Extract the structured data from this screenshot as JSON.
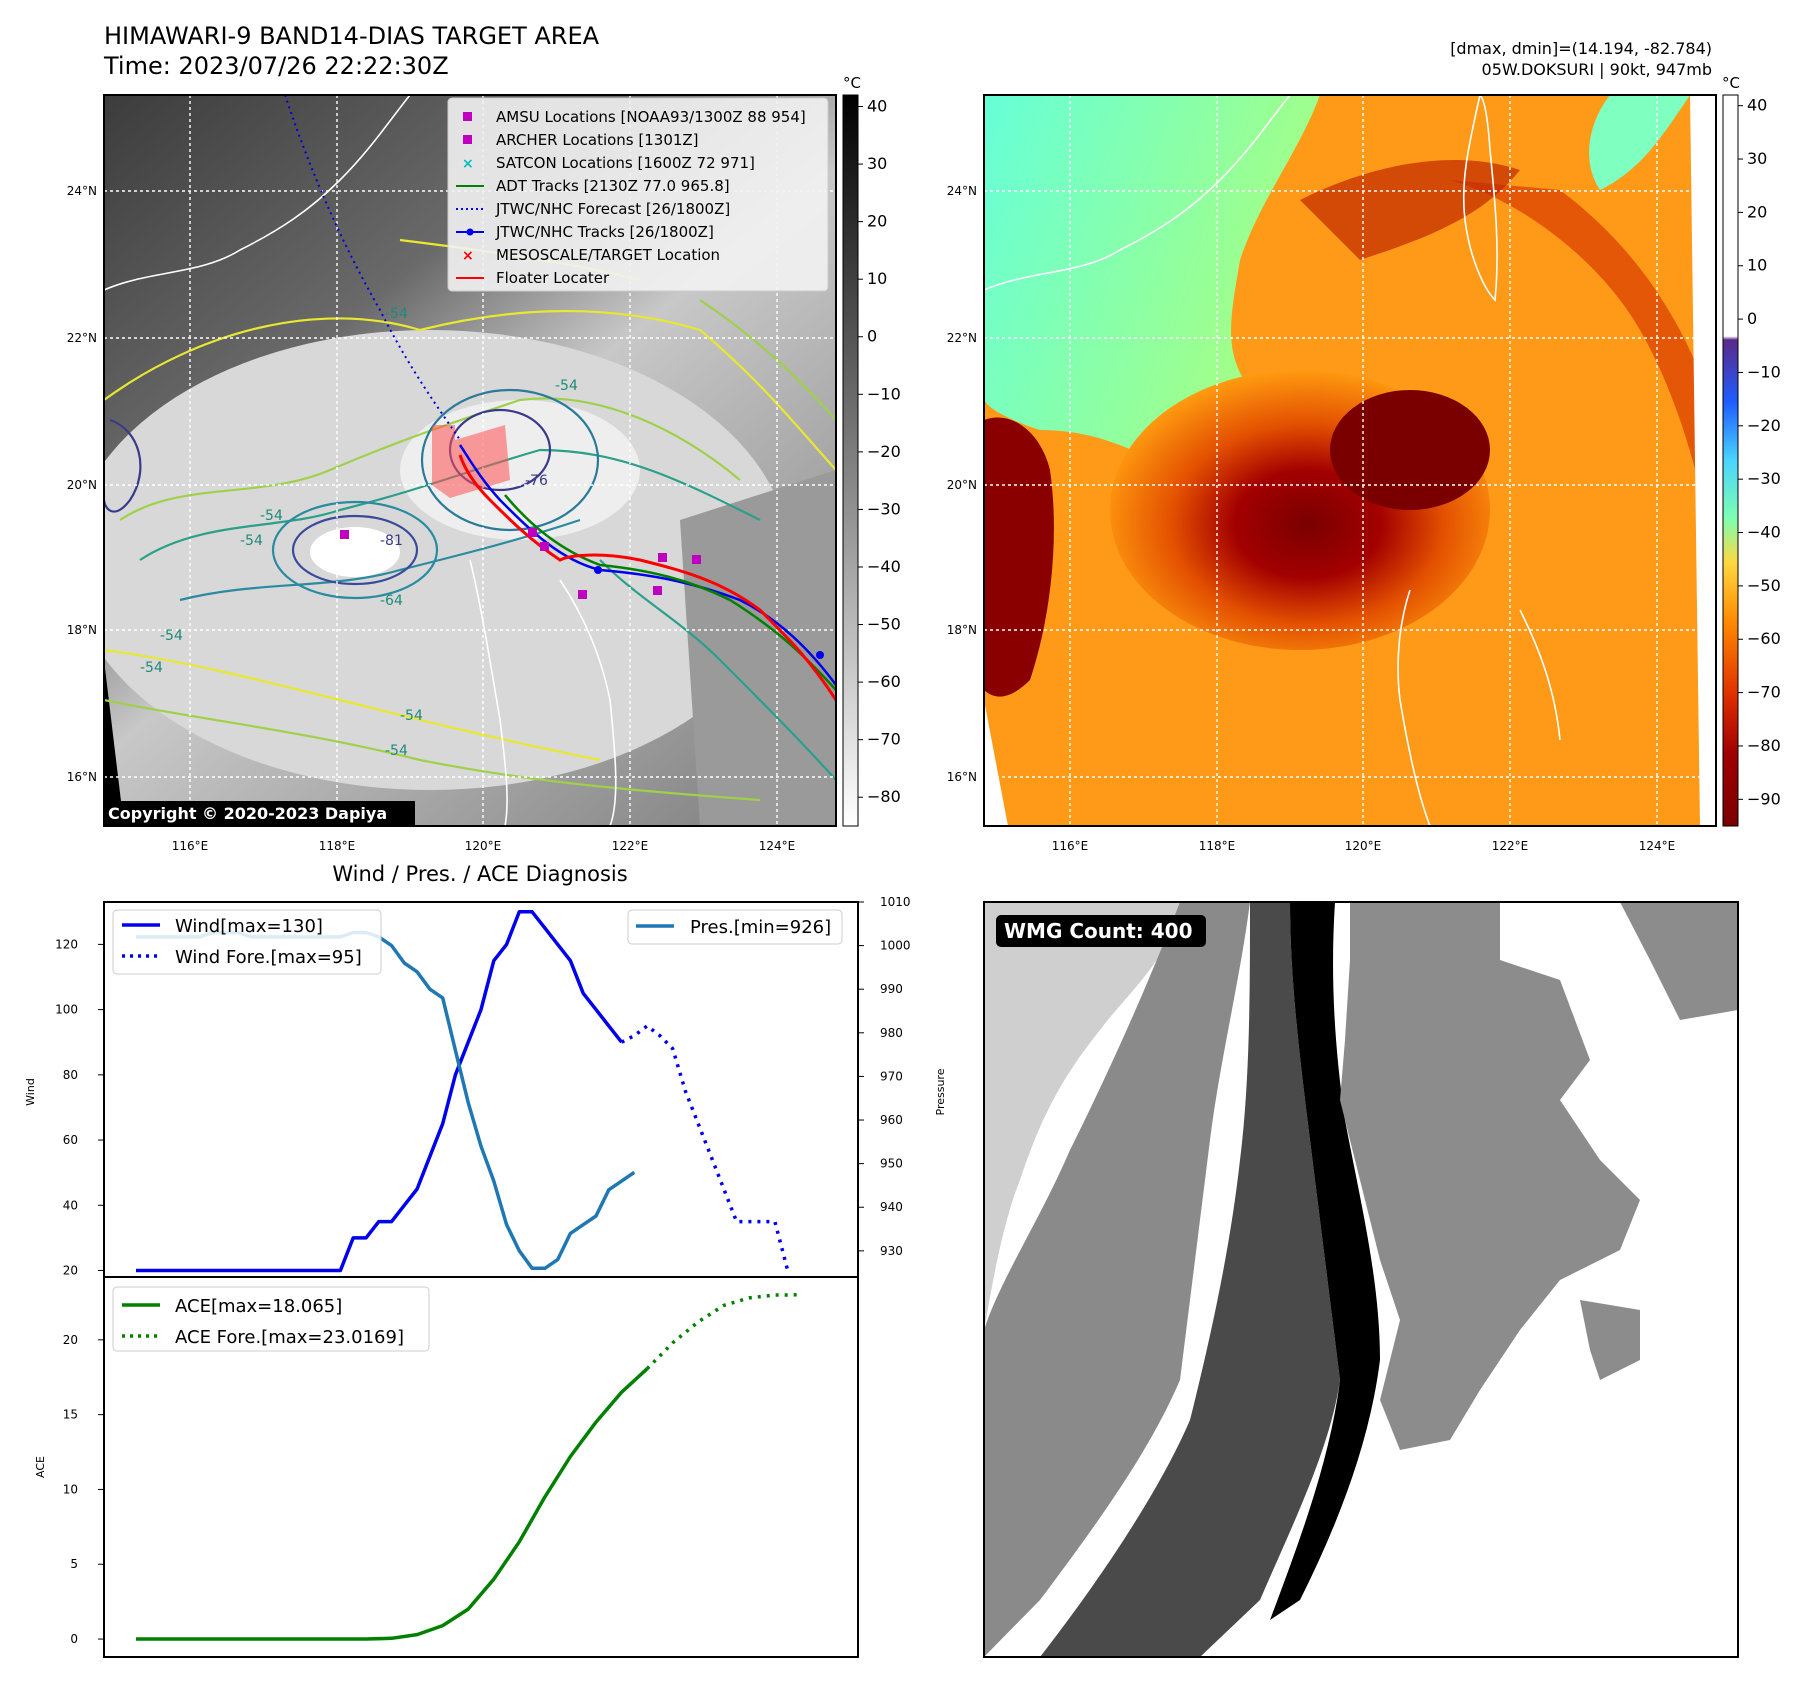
{
  "header": {
    "title": "HIMAWARI-9 BAND14-DIAS TARGET AREA",
    "time": "Time: 2023/07/26 22:22:30Z",
    "dmax_dmin": "[dmax, dmin]=(14.194, -82.784)",
    "storm": "05W.DOKSURI | 90kt, 947mb"
  },
  "colors": {
    "wind": "#0000ee",
    "pres": "#1f77b4",
    "ace": "#008000",
    "floater": "#ff0000",
    "amsu": "#bf00bf",
    "satcon": "#00bfbf",
    "adt": "#008000"
  },
  "map_left": {
    "unit": "°C",
    "lat_ticks": [
      "24°N",
      "22°N",
      "20°N",
      "18°N",
      "16°N"
    ],
    "lon_ticks": [
      "116°E",
      "118°E",
      "120°E",
      "122°E",
      "124°E"
    ],
    "colorbar_ticks": [
      "40",
      "30",
      "20",
      "10",
      "0",
      "−10",
      "−20",
      "−30",
      "−40",
      "−50",
      "−60",
      "−70",
      "−80"
    ],
    "contour_labels": [
      "-54",
      "-54",
      "-54",
      "-54",
      "-54",
      "-54",
      "-54",
      "-76",
      "-81",
      "-64",
      "-54"
    ],
    "copyright": "Copyright © 2020-2023 Dapiya",
    "legend": [
      {
        "label": "AMSU Locations [NOAA93/1300Z 88 954]",
        "icon": "square-magenta"
      },
      {
        "label": "ARCHER Locations [1301Z]",
        "icon": "square-magenta"
      },
      {
        "label": "SATCON Locations [1600Z 72 971]",
        "icon": "x-cyan"
      },
      {
        "label": "ADT Tracks [2130Z 77.0 965.8]",
        "icon": "line-green"
      },
      {
        "label": "JTWC/NHC Forecast [26/1800Z]",
        "icon": "dotted-blue"
      },
      {
        "label": "JTWC/NHC Tracks [26/1800Z]",
        "icon": "line-dot-blue"
      },
      {
        "label": "MESOSCALE/TARGET Location",
        "icon": "x-red"
      },
      {
        "label": "Floater Locater",
        "icon": "line-red"
      }
    ]
  },
  "map_right": {
    "unit": "°C",
    "lat_ticks": [
      "24°N",
      "22°N",
      "20°N",
      "18°N",
      "16°N"
    ],
    "lon_ticks": [
      "116°E",
      "118°E",
      "120°E",
      "122°E",
      "124°E"
    ],
    "colorbar_ticks": [
      "40",
      "30",
      "20",
      "10",
      "0",
      "−10",
      "−20",
      "−30",
      "−40",
      "−50",
      "−60",
      "−70",
      "−80",
      "−90"
    ]
  },
  "diag_title": "Wind / Pres. / ACE Diagnosis",
  "wmg_label": "WMG Count: 400",
  "chart_data": [
    {
      "type": "line",
      "title": "Wind / Pres. / ACE Diagnosis",
      "ylabel": "Wind",
      "ylabel_right": "Pressure",
      "ylim": [
        18,
        133
      ],
      "ylim_right": [
        924,
        1010
      ],
      "yticks": [
        20,
        40,
        60,
        80,
        100,
        120
      ],
      "yticks_right": [
        930,
        940,
        950,
        960,
        970,
        980,
        990,
        1000,
        1010
      ],
      "legend_left": [
        "Wind[max=130]",
        "Wind Fore.[max=95]"
      ],
      "legend_right": [
        "Pres.[min=926]"
      ],
      "x": [
        0,
        1,
        2,
        3,
        4,
        5,
        6,
        7,
        8,
        9,
        10,
        11,
        12,
        13,
        14,
        15,
        16,
        17,
        18,
        19,
        20,
        21,
        22,
        23,
        24,
        25,
        26,
        27,
        28,
        29,
        30,
        31,
        32,
        33,
        34,
        35,
        36,
        37,
        38,
        39,
        40,
        41,
        42,
        43,
        44,
        45,
        46,
        47,
        48,
        49,
        50,
        51,
        52,
        53,
        54
      ],
      "series": [
        {
          "name": "Wind[max=130]",
          "style": "solid",
          "values": [
            20,
            20,
            20,
            20,
            20,
            20,
            20,
            20,
            20,
            20,
            20,
            20,
            20,
            20,
            20,
            20,
            20,
            30,
            30,
            35,
            35,
            40,
            45,
            55,
            65,
            80,
            90,
            100,
            115,
            120,
            130,
            130,
            125,
            120,
            115,
            105,
            100,
            95,
            90,
            null,
            null,
            null,
            null,
            null,
            null,
            null,
            null,
            null,
            null,
            null,
            null,
            null,
            null,
            null,
            null
          ]
        },
        {
          "name": "Wind Fore.[max=95]",
          "style": "dotted",
          "values": [
            null,
            null,
            null,
            null,
            null,
            null,
            null,
            null,
            null,
            null,
            null,
            null,
            null,
            null,
            null,
            null,
            null,
            null,
            null,
            null,
            null,
            null,
            null,
            null,
            null,
            null,
            null,
            null,
            null,
            null,
            null,
            null,
            null,
            null,
            null,
            null,
            null,
            null,
            90,
            92,
            95,
            92,
            88,
            75,
            65,
            55,
            45,
            35,
            35,
            35,
            35,
            20,
            null,
            null,
            null
          ]
        },
        {
          "name": "Pres.[min=926]",
          "style": "solid",
          "axis": "right",
          "values": [
            1002,
            1002,
            1002,
            1002,
            1002,
            1002,
            1003,
            1003,
            1003,
            1002,
            1002,
            1002,
            1002,
            1002,
            1002,
            1002,
            1002,
            1003,
            1003,
            1002,
            1000,
            996,
            994,
            990,
            988,
            976,
            964,
            954,
            946,
            936,
            930,
            926,
            926,
            928,
            934,
            936,
            938,
            944,
            946,
            948,
            null,
            null,
            null,
            null,
            null,
            null,
            null,
            null,
            null,
            null,
            null,
            null,
            null,
            null,
            null
          ]
        }
      ]
    },
    {
      "type": "line",
      "ylabel": "ACE",
      "ylim": [
        -1.2,
        24.2
      ],
      "yticks": [
        0,
        5,
        10,
        15,
        20
      ],
      "legend": [
        "ACE[max=18.065]",
        "ACE Fore.[max=23.0169]"
      ],
      "x": [
        0,
        2,
        4,
        6,
        8,
        10,
        12,
        14,
        16,
        18,
        20,
        22,
        24,
        26,
        28,
        30,
        32,
        34,
        36,
        38,
        40,
        42,
        44,
        46,
        48,
        50,
        51,
        52,
        53,
        54
      ],
      "series": [
        {
          "name": "ACE[max=18.065]",
          "style": "solid",
          "values": [
            0,
            0,
            0,
            0,
            0,
            0,
            0,
            0,
            0,
            0,
            0.05,
            0.3,
            0.9,
            2.0,
            4.0,
            6.5,
            9.5,
            12.2,
            14.5,
            16.5,
            18.065,
            null,
            null,
            null,
            null,
            null,
            null,
            null,
            null,
            null
          ]
        },
        {
          "name": "ACE Fore.[max=23.0169]",
          "style": "dotted",
          "values": [
            null,
            null,
            null,
            null,
            null,
            null,
            null,
            null,
            null,
            null,
            null,
            null,
            null,
            null,
            null,
            null,
            null,
            null,
            null,
            null,
            18.065,
            19.8,
            21.2,
            22.3,
            22.8,
            23.0,
            23.0,
            23.0169,
            null,
            null
          ]
        }
      ]
    }
  ]
}
